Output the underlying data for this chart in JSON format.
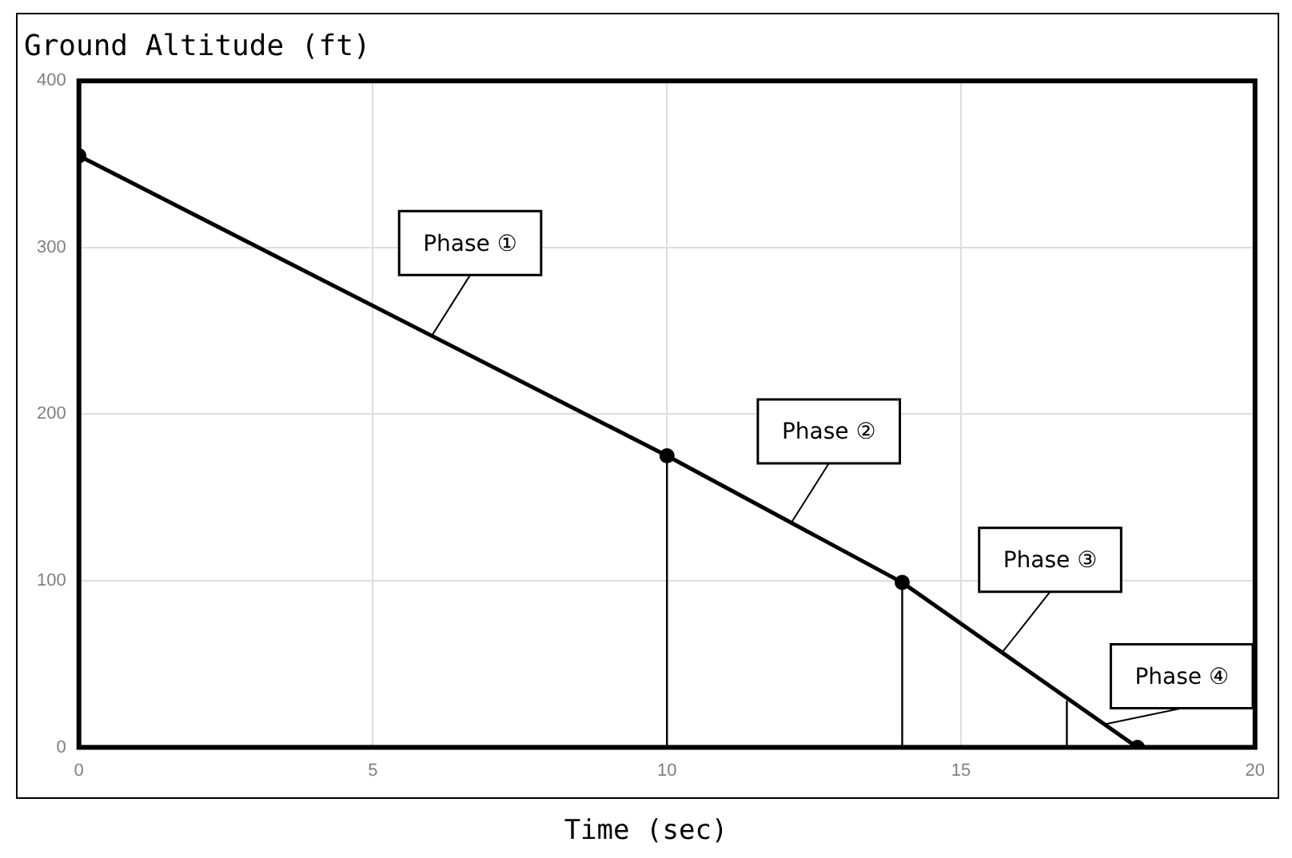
{
  "chart_data": {
    "type": "line",
    "title": "Ground Altitude (ft)",
    "xlabel": "Time (sec)",
    "xlim": [
      0,
      20
    ],
    "xticks": [
      0,
      5,
      10,
      15,
      20
    ],
    "ylim": [
      0,
      400
    ],
    "yticks": [
      0,
      100,
      200,
      300,
      400
    ],
    "grid": true,
    "marker": "circle",
    "line_style": "solid",
    "series": [
      {
        "color": "#000000",
        "x": [
          0,
          10,
          14,
          18
        ],
        "values": [
          355,
          175,
          99,
          0
        ]
      },
      {
        "color": "#000000",
        "x": [
          10,
          10
        ],
        "values": [
          0,
          175
        ],
        "marker": "none"
      },
      {
        "color": "#000000",
        "x": [
          14,
          14
        ],
        "values": [
          0,
          99
        ],
        "marker": "none"
      },
      {
        "color": "#000000",
        "x": [
          16.8,
          16.8
        ],
        "values": [
          0,
          28
        ],
        "marker": "none"
      }
    ],
    "annotations": [
      {
        "text": "Phase ①",
        "x": 6,
        "y": 247
      },
      {
        "text": "Phase ②",
        "x": 12.1,
        "y": 134
      },
      {
        "text": "Phase ③",
        "x": 15.7,
        "y": 57
      },
      {
        "text": "Phase ④",
        "x": 17.45,
        "y": 14
      }
    ]
  }
}
